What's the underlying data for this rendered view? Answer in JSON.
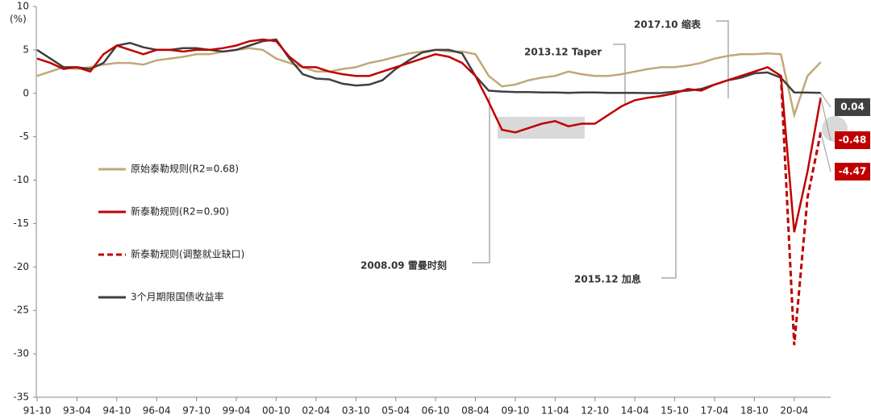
{
  "chart_data": {
    "type": "line",
    "y_unit": "(%)",
    "categories": [
      "91-10",
      null,
      null,
      "93-04",
      null,
      null,
      "94-10",
      null,
      null,
      "96-04",
      null,
      null,
      "97-10",
      null,
      null,
      "99-04",
      null,
      null,
      "00-10",
      null,
      null,
      "02-04",
      null,
      null,
      "03-10",
      null,
      null,
      "05-04",
      null,
      null,
      "06-10",
      null,
      null,
      "08-04",
      null,
      null,
      "09-10",
      null,
      null,
      "11-04",
      null,
      null,
      "12-10",
      null,
      null,
      "14-04",
      null,
      null,
      "15-10",
      null,
      null,
      "17-04",
      null,
      null,
      "18-10",
      null,
      null,
      "20-04",
      null,
      null
    ],
    "series": [
      {
        "name": "原始泰勒规则(R2=0.68)",
        "color": "#c2a878",
        "dash": false,
        "values": [
          2,
          2.5,
          3,
          2.8,
          3,
          3.3,
          3.5,
          3.5,
          3.3,
          3.8,
          4,
          4.2,
          4.5,
          4.5,
          4.8,
          5,
          5.2,
          5,
          4,
          3.5,
          3,
          2.5,
          2.5,
          2.8,
          3,
          3.5,
          3.8,
          4.2,
          4.6,
          4.8,
          5,
          4.8,
          4.8,
          4.5,
          2,
          0.8,
          1,
          1.5,
          1.8,
          2,
          2.5,
          2.2,
          2,
          2,
          2.2,
          2.5,
          2.8,
          3,
          3,
          3.2,
          3.5,
          4,
          4.3,
          4.5,
          4.5,
          4.6,
          4.5,
          -2.5,
          2,
          3.6
        ]
      },
      {
        "name": "新泰勒规则(R2=0.90)",
        "color": "#c00000",
        "dash": false,
        "values": [
          4,
          3.5,
          2.8,
          3,
          2.5,
          4.5,
          5.5,
          5,
          4.5,
          5,
          5,
          4.8,
          5,
          5,
          5.2,
          5.5,
          6,
          6.2,
          6,
          4.2,
          3,
          3,
          2.5,
          2.2,
          2,
          2,
          2.5,
          3,
          3.5,
          4,
          4.5,
          4.2,
          3.5,
          2,
          -1,
          -4.2,
          -4.5,
          -4,
          -3.5,
          -3.2,
          -3.8,
          -3.5,
          -3.5,
          -2.5,
          -1.5,
          -0.8,
          -0.5,
          -0.3,
          0,
          0.5,
          0.3,
          1,
          1.5,
          2,
          2.5,
          3,
          2,
          -16,
          -9,
          -0.48
        ]
      },
      {
        "name": "新泰勒规则(调整就业缺口)",
        "color": "#c00000",
        "dash": true,
        "values": [
          null,
          null,
          null,
          null,
          null,
          null,
          null,
          null,
          null,
          null,
          null,
          null,
          null,
          null,
          null,
          null,
          null,
          null,
          null,
          null,
          null,
          null,
          null,
          null,
          null,
          null,
          null,
          null,
          null,
          null,
          null,
          null,
          null,
          null,
          null,
          null,
          null,
          null,
          null,
          null,
          null,
          null,
          null,
          null,
          null,
          null,
          null,
          null,
          null,
          null,
          null,
          null,
          null,
          null,
          null,
          null,
          2,
          -29,
          -12,
          -4.47
        ]
      },
      {
        "name": "3个月期限国债收益率",
        "color": "#404040",
        "dash": false,
        "values": [
          5,
          4,
          3,
          3,
          2.8,
          3.5,
          5.5,
          5.8,
          5.3,
          5,
          5,
          5.2,
          5.2,
          5,
          4.8,
          5,
          5.5,
          6,
          6.2,
          4,
          2.2,
          1.7,
          1.6,
          1.1,
          0.9,
          1,
          1.5,
          2.8,
          3.8,
          4.7,
          5,
          5,
          4.6,
          2,
          0.3,
          0.2,
          0.15,
          0.15,
          0.1,
          0.1,
          0.05,
          0.1,
          0.1,
          0.05,
          0.05,
          0.05,
          0.03,
          0.03,
          0.2,
          0.3,
          0.5,
          1,
          1.5,
          1.8,
          2.3,
          2.4,
          1.8,
          0.1,
          0.08,
          0.04
        ]
      }
    ],
    "ylim": [
      -35,
      10
    ],
    "yticks": [
      -35,
      -30,
      -25,
      -20,
      -15,
      -10,
      -5,
      0,
      5,
      10
    ],
    "annotations": [
      "2008.09 雷曼时刻",
      "2013.12 Taper",
      "2015.12 加息",
      "2017.10 缩表"
    ],
    "end_labels": [
      3,
      1,
      2
    ]
  }
}
